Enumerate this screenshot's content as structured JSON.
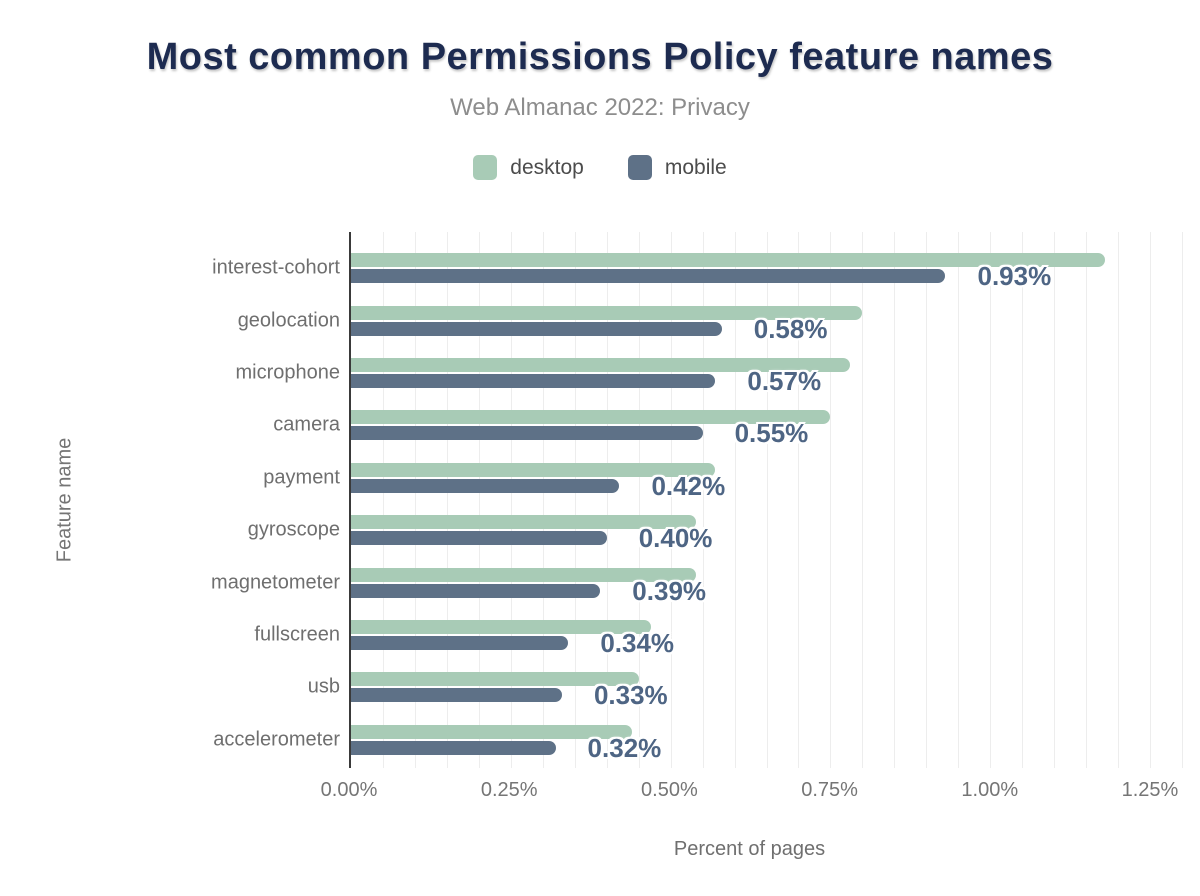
{
  "chart": {
    "title": "Most common Permissions Policy feature names",
    "subtitle": "Web Almanac 2022: Privacy",
    "x_axis_label": "Percent of pages",
    "y_axis_label": "Feature name"
  },
  "legend": {
    "items": [
      {
        "label": "desktop",
        "color": "#a8cbb6"
      },
      {
        "label": "mobile",
        "color": "#5e7187"
      }
    ]
  },
  "chart_data": {
    "type": "bar",
    "orientation": "horizontal",
    "title": "Most common Permissions Policy feature names",
    "subtitle": "Web Almanac 2022: Privacy",
    "xlabel": "Percent of pages",
    "ylabel": "Feature name",
    "legend_position": "top",
    "grid": true,
    "gridline_step": 0.05,
    "x_max": 1.3,
    "categories": [
      "interest-cohort",
      "geolocation",
      "microphone",
      "camera",
      "payment",
      "gyroscope",
      "magnetometer",
      "fullscreen",
      "usb",
      "accelerometer"
    ],
    "series": [
      {
        "name": "desktop",
        "color": "#a8cbb6",
        "values": [
          1.18,
          0.8,
          0.78,
          0.75,
          0.57,
          0.54,
          0.54,
          0.47,
          0.45,
          0.44
        ]
      },
      {
        "name": "mobile",
        "color": "#5e7187",
        "values": [
          0.93,
          0.58,
          0.57,
          0.55,
          0.42,
          0.4,
          0.39,
          0.34,
          0.33,
          0.32
        ]
      }
    ],
    "data_labels": [
      "0.93%",
      "0.58%",
      "0.57%",
      "0.55%",
      "0.42%",
      "0.40%",
      "0.39%",
      "0.34%",
      "0.33%",
      "0.32%"
    ],
    "data_label_series": "mobile",
    "x_ticks": [
      {
        "label": "0.00%",
        "value": 0.0
      },
      {
        "label": "0.25%",
        "value": 0.25
      },
      {
        "label": "0.50%",
        "value": 0.5
      },
      {
        "label": "0.75%",
        "value": 0.75
      },
      {
        "label": "1.00%",
        "value": 1.0
      },
      {
        "label": "1.25%",
        "value": 1.25
      }
    ],
    "value_label_color": "#4e6584",
    "title_color": "#1d2b50",
    "axis_text_color": "#757575"
  }
}
